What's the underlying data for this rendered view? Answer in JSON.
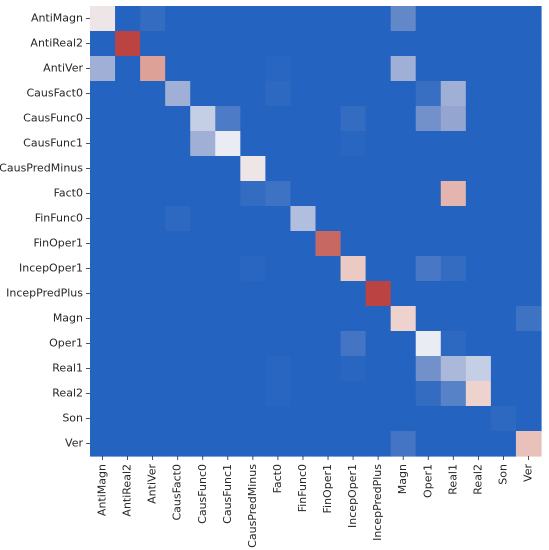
{
  "chart_data": {
    "type": "heatmap",
    "title": "",
    "xlabel": "",
    "ylabel": "",
    "colormap": "coolwarm",
    "colorbar": false,
    "grid": false,
    "rows": [
      "AntiMagn",
      "AntiReal2",
      "AntiVer",
      "CausFact0",
      "CausFunc0",
      "CausFunc1",
      "CausPredMinus",
      "Fact0",
      "FinFunc0",
      "FinOper1",
      "IncepOper1",
      "IncepPredPlus",
      "Magn",
      "Oper1",
      "Real1",
      "Real2",
      "Son",
      "Ver"
    ],
    "cols": [
      "AntiMagn",
      "AntiReal2",
      "AntiVer",
      "CausFact0",
      "CausFunc0",
      "CausFunc1",
      "CausPredMinus",
      "Fact0",
      "FinFunc0",
      "FinOper1",
      "IncepOper1",
      "IncepPredPlus",
      "Magn",
      "Oper1",
      "Real1",
      "Real2",
      "Son",
      "Ver"
    ],
    "values": [
      [
        0.5,
        0.0,
        0.03,
        0,
        0,
        0,
        0,
        0,
        0,
        0,
        0,
        0,
        0.12,
        0,
        0,
        0,
        0,
        0
      ],
      [
        0,
        0.95,
        0,
        0,
        0,
        0,
        0,
        0,
        0,
        0,
        0,
        0,
        0,
        0,
        0,
        0,
        0,
        0
      ],
      [
        0.25,
        0,
        0.7,
        0,
        0,
        0,
        0,
        0.01,
        0,
        0,
        0,
        0,
        0.25,
        0,
        0,
        0,
        0,
        0
      ],
      [
        0,
        0,
        0,
        0.25,
        0,
        0,
        0,
        0.02,
        0,
        0,
        0,
        0,
        0,
        0.04,
        0.25,
        0,
        0,
        0
      ],
      [
        0,
        0,
        0,
        0,
        0.35,
        0.08,
        0,
        0,
        0,
        0,
        0.03,
        0,
        0,
        0.15,
        0.22,
        0,
        0,
        0
      ],
      [
        0,
        0,
        0,
        0,
        0.25,
        0.45,
        0,
        0,
        0,
        0,
        0.01,
        0,
        0,
        0,
        0,
        0,
        0,
        0
      ],
      [
        0,
        0,
        0,
        0,
        0,
        0,
        0.5,
        0,
        0,
        0,
        0,
        0,
        0,
        0,
        0,
        0,
        0,
        0
      ],
      [
        0,
        0,
        0,
        0,
        0,
        0,
        0.03,
        0.05,
        0,
        0,
        0,
        0,
        0,
        0,
        0.65,
        0,
        0,
        0
      ],
      [
        0,
        0,
        0,
        0.02,
        0,
        0,
        0,
        0,
        0.3,
        0,
        0,
        0,
        0,
        0,
        0,
        0,
        0,
        0
      ],
      [
        0,
        0,
        0,
        0,
        0,
        0,
        0,
        0,
        0,
        0.85,
        0,
        0,
        0,
        0,
        0,
        0,
        0,
        0
      ],
      [
        0,
        0,
        0,
        0,
        0,
        0,
        0.01,
        0,
        0,
        0,
        0.6,
        0,
        0,
        0.07,
        0.03,
        0,
        0,
        0
      ],
      [
        0,
        0,
        0,
        0,
        0,
        0,
        0,
        0,
        0,
        0,
        0,
        0.95,
        0,
        0,
        0,
        0,
        0,
        0
      ],
      [
        0,
        0,
        0,
        0,
        0,
        0,
        0,
        0,
        0,
        0,
        0,
        0,
        0.58,
        0,
        0,
        0,
        0,
        0.05
      ],
      [
        0,
        0,
        0,
        0,
        0,
        0,
        0,
        0,
        0,
        0,
        0.06,
        0,
        0,
        0.45,
        0.02,
        0,
        0,
        0
      ],
      [
        0,
        0,
        0,
        0,
        0,
        0,
        0,
        0.01,
        0,
        0,
        0.01,
        0,
        0,
        0.15,
        0.28,
        0.35,
        0,
        0
      ],
      [
        0,
        0,
        0,
        0,
        0,
        0,
        0,
        0.01,
        0,
        0,
        0,
        0,
        0,
        0.03,
        0.1,
        0.58,
        0,
        0
      ],
      [
        0,
        0,
        0,
        0,
        0,
        0,
        0,
        0,
        0,
        0,
        0,
        0,
        0,
        0,
        0,
        0,
        0.02,
        0
      ],
      [
        0,
        0,
        0,
        0,
        0,
        0,
        0,
        0,
        0,
        0,
        0,
        0,
        0.06,
        0,
        0,
        0,
        0,
        0.62
      ]
    ]
  }
}
